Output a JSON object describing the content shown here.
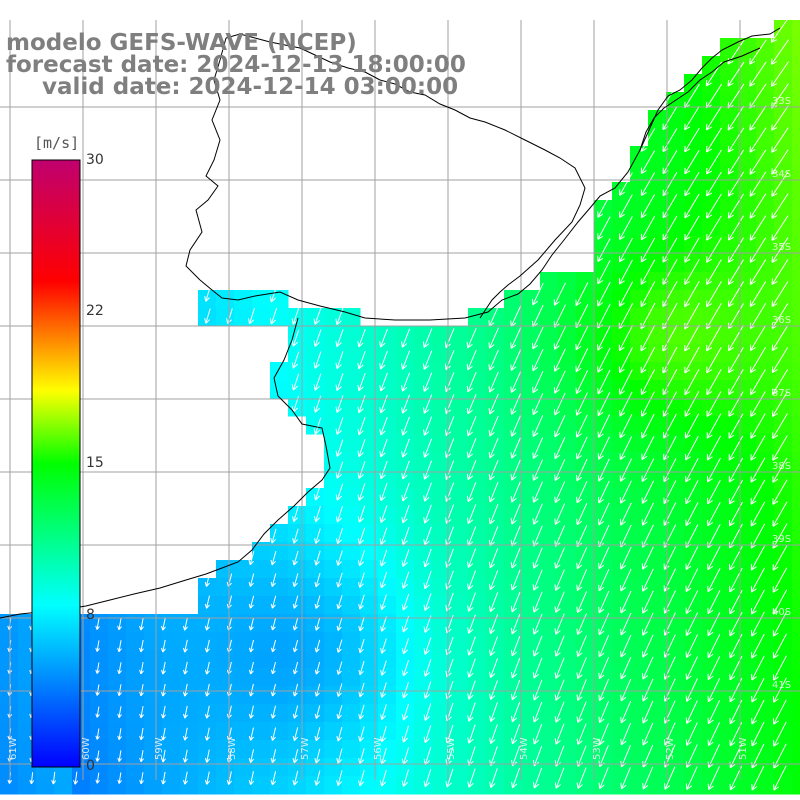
{
  "title": {
    "model": "modelo GEFS-WAVE (NCEP)",
    "forecast": "forecast date: 2024-12-13 18:00:00",
    "valid": "valid date: 2024-12-14 03:00:00"
  },
  "colorbar": {
    "unit": "[m/s]",
    "ticks": [
      "30",
      "22",
      "15",
      "8",
      "0"
    ],
    "min": 0,
    "max": 30,
    "colors": [
      "#0000ff",
      "#00ffff",
      "#00ff00",
      "#ffff00",
      "#ff0000",
      "#c0006f"
    ]
  },
  "grid": {
    "lon_labels": [
      "61W",
      "60W",
      "59W",
      "58W",
      "57W",
      "56W",
      "55W",
      "54W",
      "53W",
      "52W",
      "51W"
    ],
    "lat_labels": [
      "33S",
      "34S",
      "35S",
      "36S",
      "37S",
      "38S",
      "39S",
      "40S",
      "41S"
    ]
  },
  "colors": {
    "land": "#ffffff",
    "coastline": "#000000",
    "gridline": "#a0a0a0",
    "arrow": "#ffffff",
    "title": "#7f7f7f"
  }
}
